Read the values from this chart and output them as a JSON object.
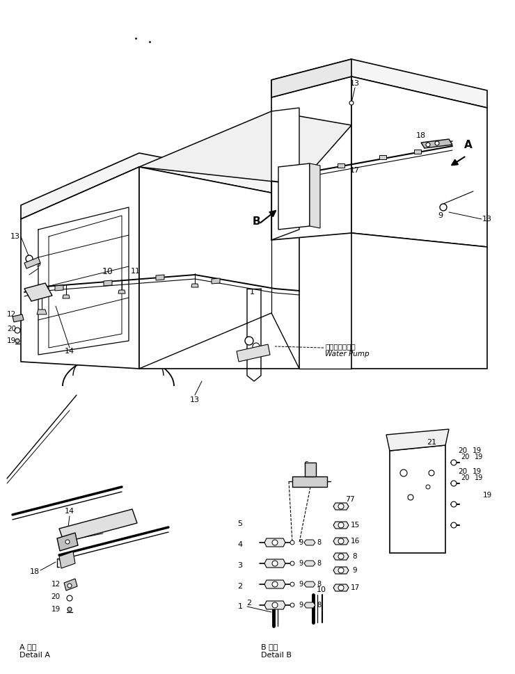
{
  "bg_color": "#ffffff",
  "lc": "#000000",
  "fig_w": 7.4,
  "fig_h": 9.69,
  "dpi": 100,
  "labels": {
    "A_ja": "A 詳細",
    "A_en": "Detail A",
    "B_ja": "B 詳細",
    "B_en": "Detail B",
    "wp_ja": "ウォータポンプ",
    "wp_en": "Water Pump"
  }
}
